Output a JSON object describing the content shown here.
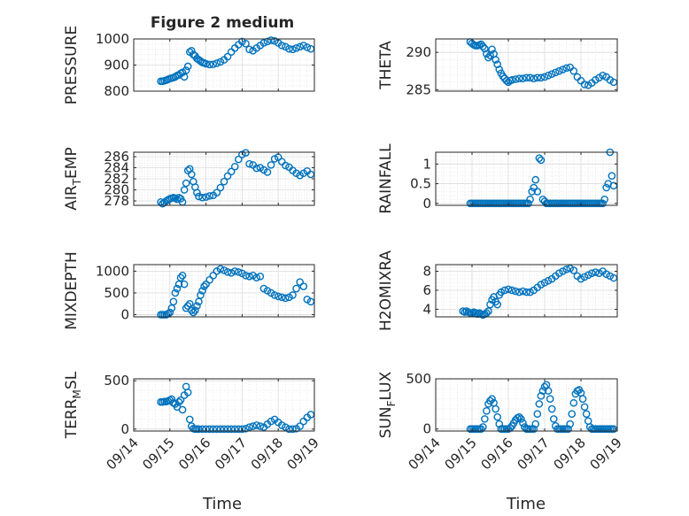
{
  "figure": {
    "title": "Figure 2 medium",
    "xlabel": "Time",
    "xticks": [
      "09/14",
      "09/15",
      "09/16",
      "09/17",
      "09/18",
      "09/19"
    ],
    "marker_color": "#0072BD",
    "grid": true,
    "minor_grid": true
  },
  "chart_data": [
    {
      "type": "scatter",
      "panel": "pressure",
      "ylabel_parts": [
        "PRESSURE"
      ],
      "ylim": [
        800,
        1000
      ],
      "yticks": [
        800,
        900,
        1000
      ],
      "x": [
        0.75,
        0.8,
        0.85,
        0.9,
        0.95,
        1.0,
        1.05,
        1.1,
        1.15,
        1.2,
        1.25,
        1.3,
        1.35,
        1.4,
        1.45,
        1.5,
        1.55,
        1.6,
        1.65,
        1.7,
        1.75,
        1.8,
        1.85,
        1.9,
        1.95,
        2.0,
        2.1,
        2.2,
        2.3,
        2.4,
        2.5,
        2.6,
        2.7,
        2.8,
        2.9,
        3.0,
        3.1,
        3.2,
        3.3,
        3.4,
        3.5,
        3.6,
        3.7,
        3.8,
        3.9,
        4.0,
        4.1,
        4.2,
        4.3,
        4.4,
        4.5,
        4.6,
        4.7,
        4.8,
        4.9
      ],
      "y": [
        838,
        838,
        840,
        842,
        845,
        848,
        850,
        852,
        855,
        860,
        862,
        868,
        872,
        855,
        880,
        895,
        950,
        955,
        940,
        935,
        925,
        920,
        915,
        910,
        908,
        905,
        902,
        903,
        907,
        912,
        920,
        932,
        950,
        965,
        978,
        990,
        982,
        960,
        955,
        965,
        975,
        985,
        990,
        995,
        992,
        985,
        975,
        970,
        962,
        960,
        965,
        970,
        975,
        968,
        962
      ]
    },
    {
      "type": "scatter",
      "panel": "theta",
      "ylabel_parts": [
        "THETA"
      ],
      "ylim": [
        284.8,
        291.8
      ],
      "yticks": [
        285,
        290
      ],
      "x": [
        0.95,
        1.0,
        1.05,
        1.1,
        1.15,
        1.2,
        1.25,
        1.3,
        1.35,
        1.4,
        1.45,
        1.5,
        1.55,
        1.6,
        1.65,
        1.7,
        1.75,
        1.8,
        1.85,
        1.9,
        1.95,
        2.0,
        2.05,
        2.1,
        2.2,
        2.3,
        2.4,
        2.5,
        2.6,
        2.7,
        2.8,
        2.9,
        3.0,
        3.1,
        3.2,
        3.3,
        3.4,
        3.5,
        3.6,
        3.7,
        3.8,
        3.9,
        4.0,
        4.1,
        4.2,
        4.3,
        4.4,
        4.5,
        4.6,
        4.7,
        4.8,
        4.9
      ],
      "y": [
        291.4,
        291.2,
        291.0,
        290.9,
        290.9,
        291.0,
        291.1,
        290.8,
        290.5,
        289.8,
        289.3,
        289.6,
        290.4,
        289.8,
        289.0,
        288.4,
        287.7,
        287.2,
        286.8,
        286.5,
        286.2,
        286.0,
        286.2,
        286.3,
        286.4,
        286.5,
        286.5,
        286.6,
        286.6,
        286.5,
        286.6,
        286.6,
        286.7,
        286.9,
        287.1,
        287.3,
        287.5,
        287.7,
        287.9,
        288.0,
        287.5,
        286.7,
        286.2,
        285.7,
        285.6,
        285.9,
        286.3,
        286.6,
        286.9,
        286.7,
        286.3,
        286.0
      ]
    },
    {
      "type": "scatter",
      "panel": "air_temp",
      "ylabel_parts": [
        "AIR",
        "T",
        "EMP"
      ],
      "ylim": [
        277.2,
        286.8
      ],
      "yticks": [
        278,
        280,
        282,
        284,
        286
      ],
      "x": [
        0.75,
        0.8,
        0.85,
        0.9,
        0.95,
        1.0,
        1.05,
        1.1,
        1.15,
        1.2,
        1.25,
        1.3,
        1.35,
        1.4,
        1.45,
        1.5,
        1.55,
        1.6,
        1.65,
        1.7,
        1.75,
        1.8,
        1.9,
        2.0,
        2.1,
        2.2,
        2.3,
        2.4,
        2.5,
        2.6,
        2.7,
        2.8,
        2.9,
        3.0,
        3.1,
        3.2,
        3.3,
        3.4,
        3.5,
        3.6,
        3.7,
        3.8,
        3.9,
        4.0,
        4.1,
        4.2,
        4.3,
        4.4,
        4.5,
        4.6,
        4.7,
        4.8,
        4.9
      ],
      "y": [
        277.8,
        277.5,
        277.7,
        278.0,
        278.2,
        278.4,
        278.5,
        278.6,
        278.5,
        278.3,
        278.6,
        278.4,
        277.8,
        280.0,
        281.2,
        283.5,
        283.8,
        282.8,
        281.5,
        280.5,
        279.5,
        278.8,
        278.6,
        278.7,
        278.9,
        279.0,
        279.5,
        280.4,
        281.5,
        282.5,
        283.3,
        284.2,
        285.5,
        286.4,
        286.7,
        284.7,
        284.5,
        283.9,
        284.0,
        283.6,
        283.2,
        284.5,
        285.6,
        285.9,
        285.1,
        284.4,
        284.1,
        283.5,
        283.0,
        282.6,
        283.0,
        283.4,
        282.8
      ]
    },
    {
      "type": "scatter",
      "panel": "rainfall",
      "ylabel_parts": [
        "RAINFALL"
      ],
      "ylim": [
        -0.05,
        1.3
      ],
      "yticks": [
        0,
        0.5,
        1
      ],
      "x": [
        0.95,
        1.0,
        1.05,
        1.1,
        1.15,
        1.2,
        1.25,
        1.3,
        1.35,
        1.4,
        1.45,
        1.5,
        1.55,
        1.6,
        1.65,
        1.7,
        1.75,
        1.8,
        1.85,
        1.9,
        1.95,
        2.0,
        2.05,
        2.1,
        2.15,
        2.2,
        2.25,
        2.3,
        2.35,
        2.4,
        2.45,
        2.5,
        2.55,
        2.6,
        2.65,
        2.7,
        2.75,
        2.8,
        2.85,
        2.9,
        2.95,
        3.0,
        3.05,
        3.1,
        3.15,
        3.2,
        3.25,
        3.3,
        3.35,
        3.4,
        3.45,
        3.5,
        3.55,
        3.6,
        3.65,
        3.7,
        3.75,
        3.8,
        3.85,
        3.9,
        3.95,
        4.0,
        4.05,
        4.1,
        4.15,
        4.2,
        4.25,
        4.3,
        4.35,
        4.4,
        4.45,
        4.5,
        4.55,
        4.6,
        4.65,
        4.7,
        4.75,
        4.8,
        4.85,
        4.9
      ],
      "y": [
        0,
        0,
        0,
        0,
        0,
        0,
        0,
        0,
        0,
        0,
        0,
        0,
        0,
        0,
        0,
        0,
        0,
        0,
        0,
        0,
        0,
        0,
        0,
        0,
        0,
        0,
        0,
        0,
        0,
        0,
        0,
        0,
        0,
        0.1,
        0.3,
        0.4,
        0.6,
        0.3,
        1.15,
        1.1,
        0.1,
        0.05,
        0,
        0,
        0,
        0,
        0,
        0,
        0,
        0,
        0,
        0,
        0,
        0,
        0,
        0,
        0,
        0,
        0,
        0,
        0,
        0,
        0,
        0,
        0,
        0,
        0,
        0,
        0,
        0,
        0,
        0,
        0,
        0,
        0.1,
        0.4,
        0.5,
        1.3,
        0.7,
        0.45
      ]
    },
    {
      "type": "scatter",
      "panel": "mixdepth",
      "ylabel_parts": [
        "MIXDEPTH"
      ],
      "ylim": [
        -50,
        1150
      ],
      "yticks": [
        0,
        500,
        1000
      ],
      "x": [
        0.75,
        0.8,
        0.85,
        0.9,
        0.95,
        1.0,
        1.05,
        1.1,
        1.15,
        1.2,
        1.25,
        1.3,
        1.35,
        1.4,
        1.45,
        1.5,
        1.55,
        1.6,
        1.65,
        1.7,
        1.75,
        1.8,
        1.85,
        1.9,
        1.95,
        2.0,
        2.1,
        2.2,
        2.3,
        2.4,
        2.5,
        2.6,
        2.7,
        2.8,
        2.9,
        3.0,
        3.1,
        3.2,
        3.3,
        3.4,
        3.5,
        3.6,
        3.7,
        3.8,
        3.9,
        4.0,
        4.1,
        4.2,
        4.3,
        4.4,
        4.5,
        4.6,
        4.7,
        4.8,
        4.9
      ],
      "y": [
        0,
        0,
        0,
        0,
        20,
        50,
        150,
        300,
        500,
        600,
        700,
        850,
        900,
        700,
        150,
        200,
        250,
        100,
        50,
        100,
        200,
        300,
        450,
        550,
        650,
        700,
        800,
        900,
        1000,
        1050,
        1020,
        980,
        960,
        1000,
        980,
        950,
        900,
        880,
        900,
        850,
        880,
        600,
        550,
        500,
        450,
        420,
        400,
        380,
        400,
        450,
        600,
        750,
        650,
        350,
        300
      ]
    },
    {
      "type": "scatter",
      "panel": "h2omixra",
      "ylabel_parts": [
        "H2OMIXRA"
      ],
      "ylim": [
        3.2,
        8.7
      ],
      "yticks": [
        4,
        6,
        8
      ],
      "x": [
        0.75,
        0.8,
        0.85,
        0.9,
        0.95,
        1.0,
        1.05,
        1.1,
        1.15,
        1.2,
        1.25,
        1.3,
        1.35,
        1.4,
        1.45,
        1.5,
        1.55,
        1.6,
        1.65,
        1.7,
        1.75,
        1.8,
        1.9,
        2.0,
        2.1,
        2.2,
        2.3,
        2.4,
        2.5,
        2.6,
        2.7,
        2.8,
        2.9,
        3.0,
        3.1,
        3.2,
        3.3,
        3.4,
        3.5,
        3.6,
        3.7,
        3.8,
        3.9,
        4.0,
        4.1,
        4.2,
        4.3,
        4.4,
        4.5,
        4.6,
        4.7,
        4.8,
        4.9
      ],
      "y": [
        3.8,
        3.7,
        3.8,
        3.7,
        3.6,
        3.6,
        3.7,
        3.6,
        3.5,
        3.6,
        3.5,
        3.4,
        3.5,
        3.6,
        3.8,
        4.5,
        5.0,
        5.3,
        4.8,
        4.5,
        5.5,
        5.8,
        6.0,
        6.1,
        6.0,
        5.9,
        5.8,
        5.9,
        5.8,
        5.8,
        6.0,
        6.3,
        6.6,
        6.8,
        7.0,
        7.2,
        7.5,
        7.8,
        8.0,
        8.2,
        8.3,
        8.1,
        7.5,
        7.2,
        7.4,
        7.6,
        7.8,
        7.9,
        7.8,
        8.0,
        7.7,
        7.5,
        7.3
      ]
    },
    {
      "type": "scatter",
      "panel": "terr_msl",
      "ylabel_parts": [
        "TERR",
        "M",
        "SL"
      ],
      "ylim": [
        -20,
        520
      ],
      "yticks": [
        0,
        500
      ],
      "x": [
        0.75,
        0.8,
        0.85,
        0.9,
        0.95,
        1.0,
        1.05,
        1.1,
        1.15,
        1.2,
        1.25,
        1.3,
        1.35,
        1.4,
        1.45,
        1.5,
        1.55,
        1.6,
        1.65,
        1.7,
        1.75,
        1.8,
        1.9,
        2.0,
        2.1,
        2.2,
        2.3,
        2.4,
        2.5,
        2.6,
        2.7,
        2.8,
        2.9,
        3.0,
        3.1,
        3.2,
        3.3,
        3.4,
        3.5,
        3.6,
        3.7,
        3.8,
        3.9,
        4.0,
        4.1,
        4.2,
        4.3,
        4.4,
        4.5,
        4.6,
        4.7,
        4.8,
        4.9
      ],
      "y": [
        280,
        280,
        285,
        285,
        290,
        300,
        310,
        270,
        260,
        230,
        280,
        300,
        200,
        350,
        440,
        380,
        100,
        30,
        5,
        0,
        0,
        0,
        0,
        0,
        0,
        0,
        0,
        0,
        0,
        0,
        0,
        0,
        0,
        0,
        5,
        20,
        30,
        40,
        30,
        20,
        50,
        80,
        100,
        70,
        40,
        20,
        0,
        0,
        5,
        30,
        80,
        120,
        150
      ]
    },
    {
      "type": "scatter",
      "panel": "sun_flux",
      "ylabel_parts": [
        "SUN",
        "F",
        "LUX"
      ],
      "ylim": [
        -20,
        500
      ],
      "yticks": [
        0,
        500
      ],
      "x": [
        0.95,
        1.0,
        1.05,
        1.1,
        1.15,
        1.2,
        1.25,
        1.3,
        1.35,
        1.4,
        1.45,
        1.5,
        1.55,
        1.6,
        1.65,
        1.7,
        1.75,
        1.8,
        1.85,
        1.9,
        1.95,
        2.0,
        2.05,
        2.1,
        2.15,
        2.2,
        2.25,
        2.3,
        2.35,
        2.4,
        2.45,
        2.5,
        2.55,
        2.6,
        2.65,
        2.7,
        2.75,
        2.8,
        2.85,
        2.9,
        2.95,
        3.0,
        3.05,
        3.1,
        3.15,
        3.2,
        3.25,
        3.3,
        3.35,
        3.4,
        3.45,
        3.5,
        3.55,
        3.6,
        3.65,
        3.7,
        3.75,
        3.8,
        3.85,
        3.9,
        3.95,
        4.0,
        4.05,
        4.1,
        4.15,
        4.2,
        4.25,
        4.3,
        4.35,
        4.4,
        4.45,
        4.5,
        4.55,
        4.6,
        4.65,
        4.7,
        4.75,
        4.8,
        4.85,
        4.9
      ],
      "y": [
        0,
        0,
        0,
        0,
        0,
        0,
        0,
        20,
        100,
        180,
        250,
        280,
        300,
        260,
        200,
        120,
        50,
        0,
        0,
        0,
        0,
        0,
        10,
        30,
        60,
        90,
        110,
        120,
        100,
        60,
        20,
        0,
        0,
        0,
        0,
        0,
        50,
        150,
        250,
        330,
        380,
        420,
        440,
        380,
        300,
        200,
        100,
        30,
        0,
        0,
        0,
        0,
        0,
        0,
        0,
        50,
        150,
        260,
        350,
        380,
        390,
        360,
        300,
        220,
        150,
        80,
        20,
        0,
        0,
        0,
        0,
        0,
        0,
        0,
        0,
        0,
        0,
        0,
        0,
        0
      ]
    }
  ]
}
